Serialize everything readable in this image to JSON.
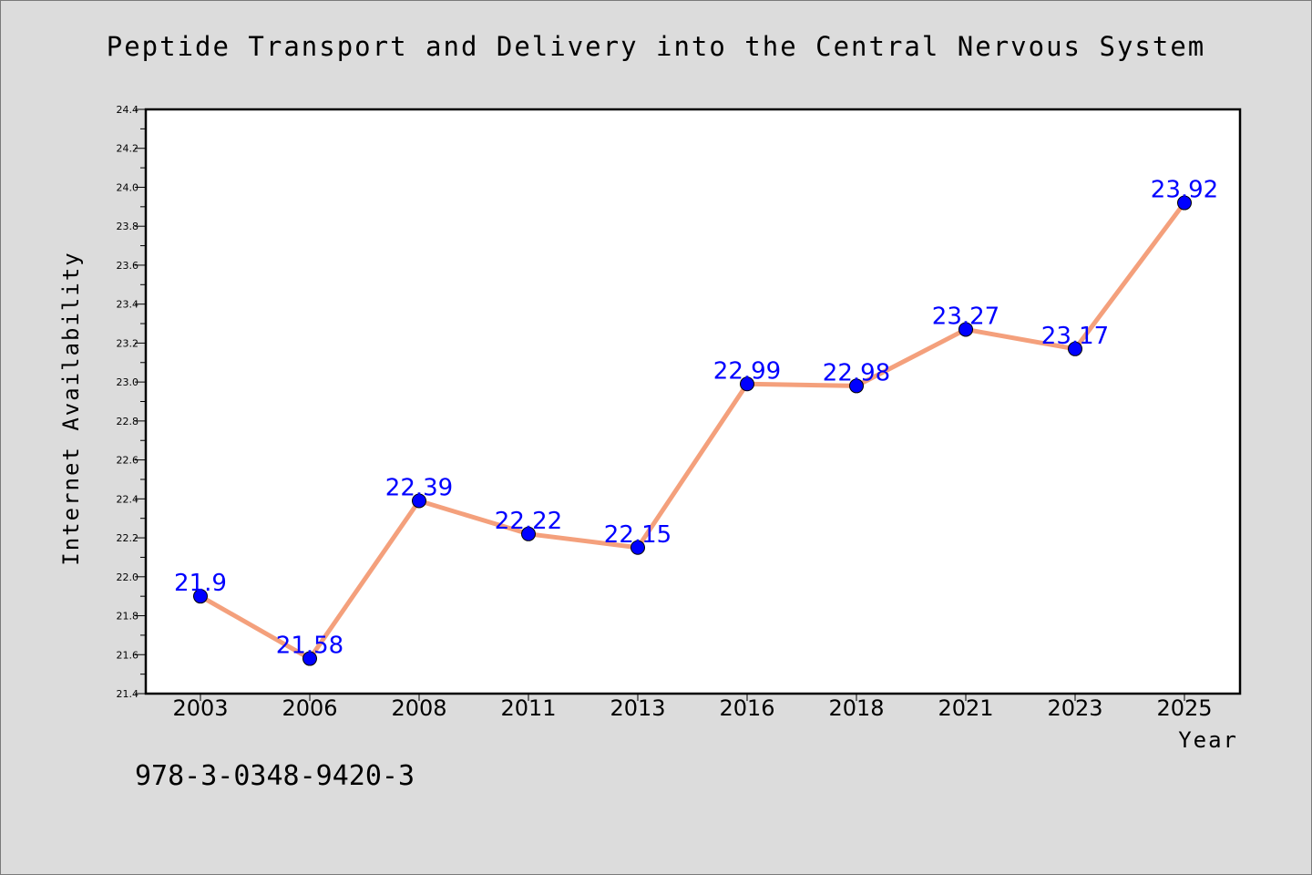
{
  "page": {
    "isbn": "978-3-0348-9420-3"
  },
  "chart_data": {
    "type": "line",
    "title": "Peptide Transport and Delivery into the Central Nervous System",
    "xlabel": "Year",
    "ylabel": "Internet Availability",
    "categories": [
      "2003",
      "2006",
      "2008",
      "2011",
      "2013",
      "2016",
      "2018",
      "2021",
      "2023",
      "2025"
    ],
    "series": [
      {
        "values": [
          21.9,
          21.58,
          22.39,
          22.22,
          22.15,
          22.99,
          22.98,
          23.27,
          23.17,
          23.92
        ],
        "labels": [
          "21.9",
          "21.58",
          "22.39",
          "22.22",
          "22.15",
          "22.99",
          "22.98",
          "23.27",
          "23.17",
          "23.92"
        ],
        "line_color": "#f4a07c",
        "marker_color": "#0000ff"
      }
    ],
    "ylim": [
      21.4,
      24.4
    ],
    "yticks": [
      "21.4",
      "21.6",
      "21.8",
      "22.0",
      "22.2",
      "22.4",
      "22.6",
      "22.8",
      "23.0",
      "23.2",
      "23.4",
      "23.6",
      "23.8",
      "24.0",
      "24.2",
      "24.4"
    ],
    "grid": false,
    "legend": false
  }
}
